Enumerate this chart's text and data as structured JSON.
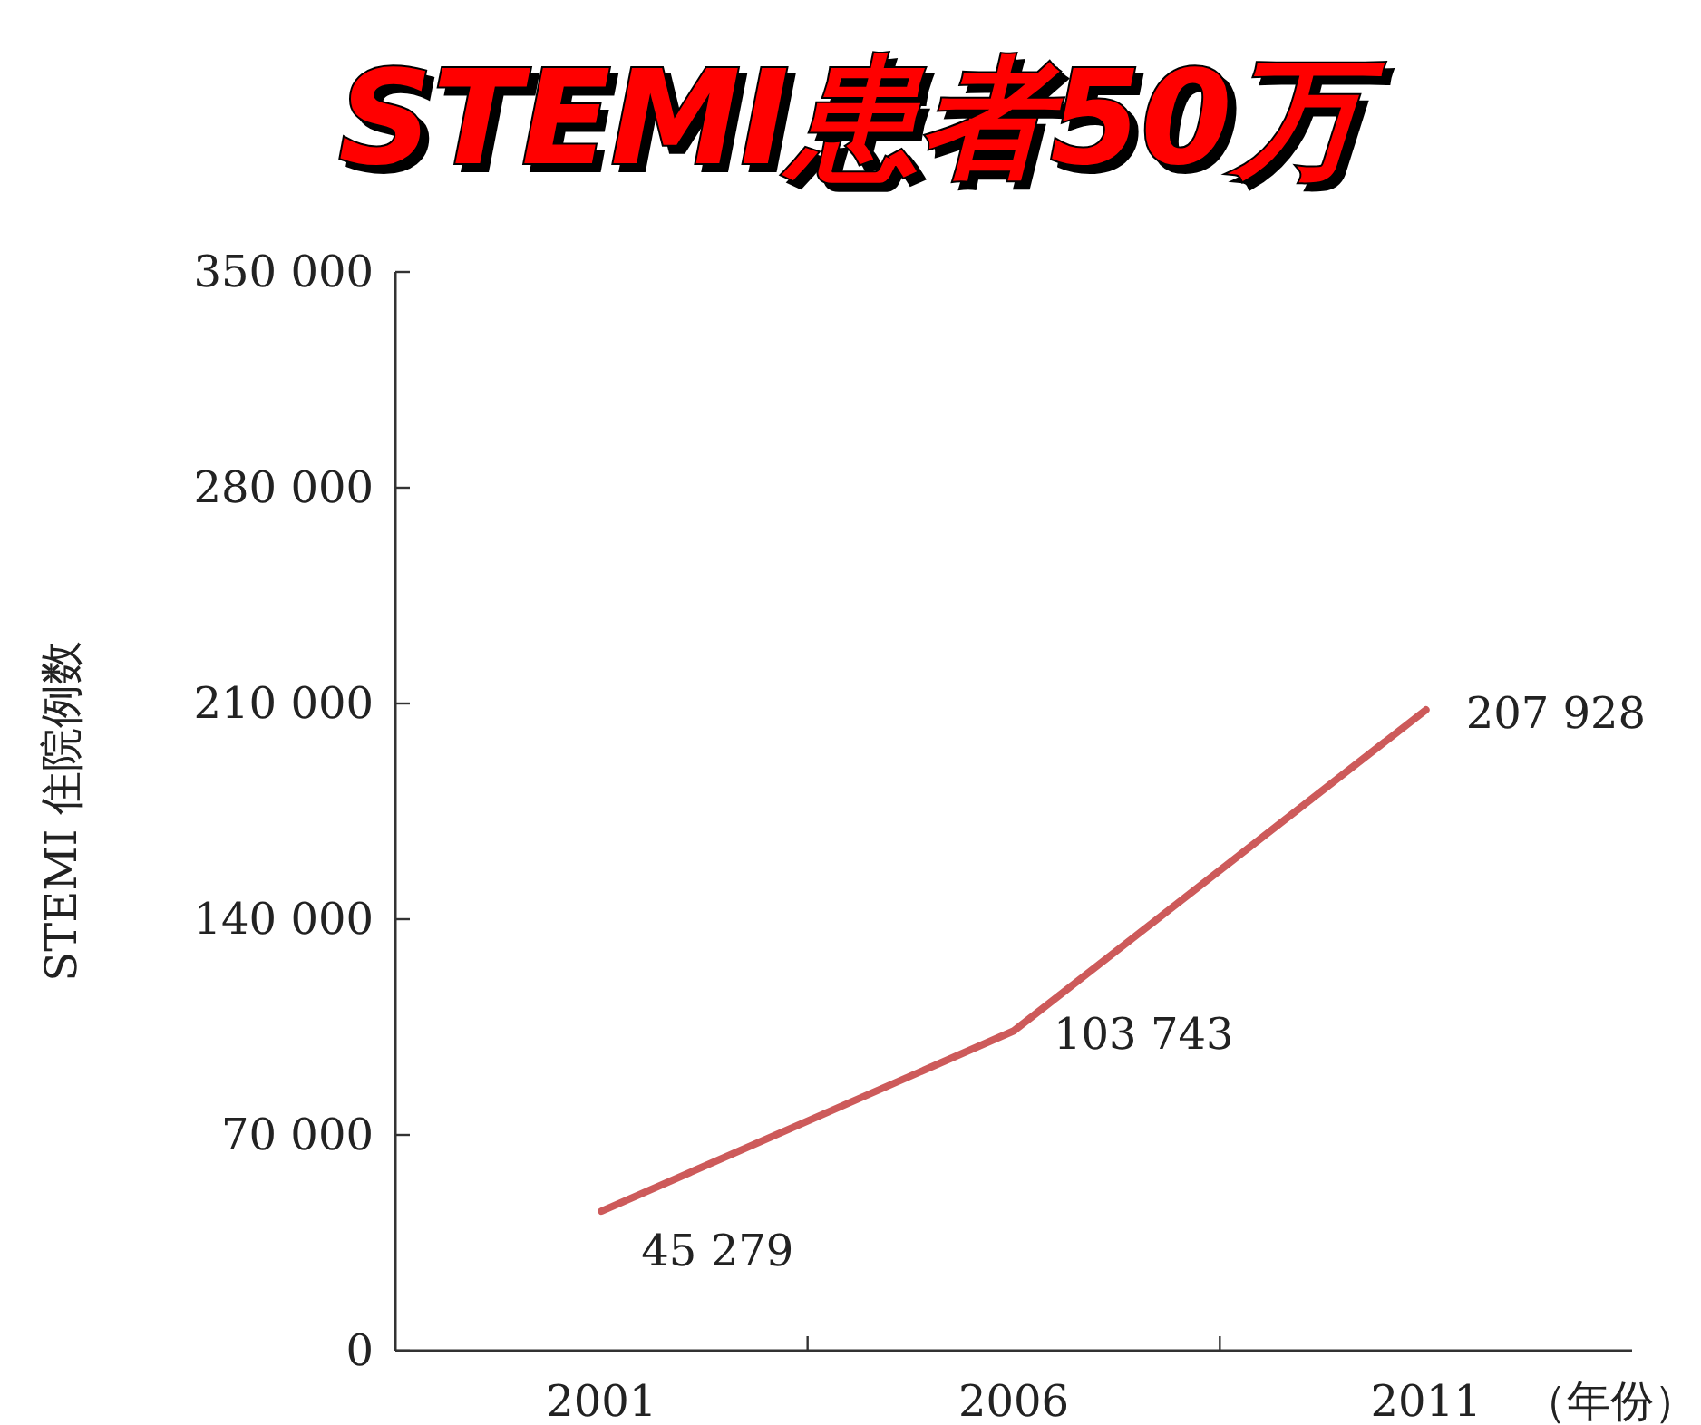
{
  "chart_data": {
    "type": "line",
    "title": "STEMI患者50万",
    "xlabel": "（年份）",
    "ylabel": "STEMI 住院例数",
    "categories": [
      "2001",
      "2006",
      "2011"
    ],
    "series": [
      {
        "color": "#cd5a5a",
        "values": [
          45279,
          103743,
          207928
        ],
        "value_labels": [
          "45 279",
          "103 743",
          "207 928"
        ]
      }
    ],
    "ylim": [
      0,
      350000
    ],
    "yticks": [
      {
        "value": 0,
        "label": "0"
      },
      {
        "value": 70000,
        "label": "70 000"
      },
      {
        "value": 140000,
        "label": "140 000"
      },
      {
        "value": 210000,
        "label": "210 000"
      },
      {
        "value": 280000,
        "label": "280 000"
      },
      {
        "value": 350000,
        "label": "350 000"
      }
    ],
    "grid": false,
    "marker": "none",
    "line_style": "solid"
  }
}
